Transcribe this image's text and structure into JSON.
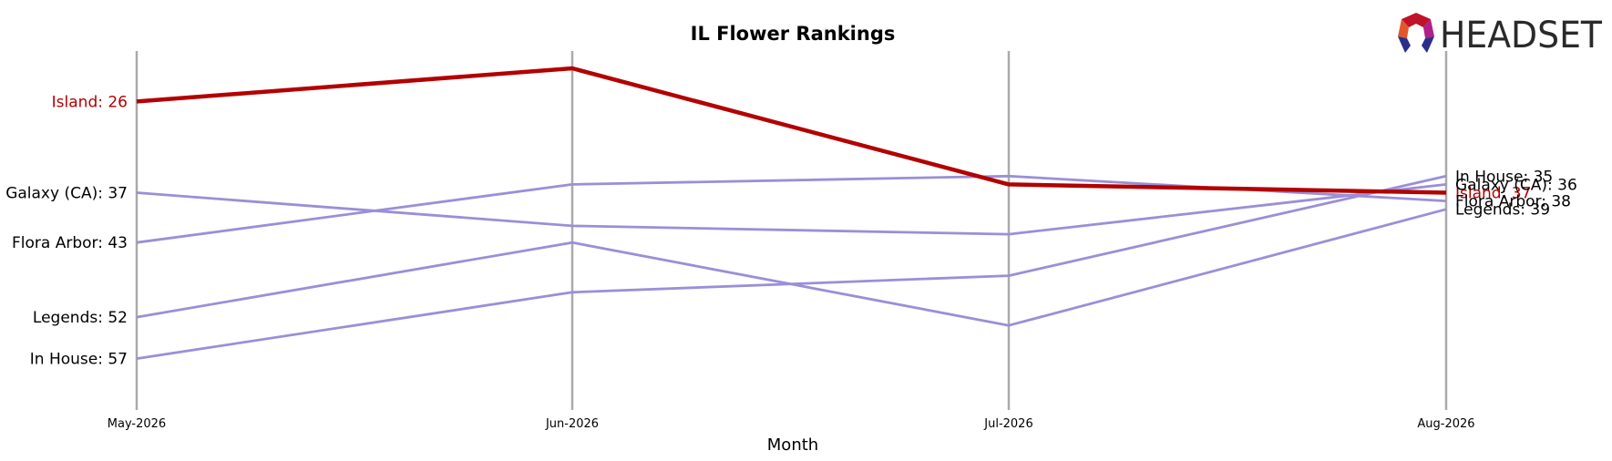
{
  "brand": {
    "name": "HEADSET",
    "logo_icon": "headset-hexagon-icon",
    "colors": [
      "#c0122a",
      "#e2582b",
      "#8b1a7a",
      "#2b2e8a",
      "#b01f8a"
    ]
  },
  "colors": {
    "highlight": "#b30000",
    "others": "#9a8fd8",
    "axis_line": "#aaaaaa",
    "text": "#000000"
  },
  "chart_data": {
    "type": "line",
    "title": "IL Flower Rankings",
    "xlabel": "Month",
    "ylabel": "",
    "categories": [
      "May-2026",
      "Jun-2026",
      "Jul-2026",
      "Aug-2026"
    ],
    "y_inverted": true,
    "ylim": [
      22,
      61
    ],
    "grid": false,
    "series": [
      {
        "name": "Island",
        "values": [
          26,
          22,
          36,
          37
        ],
        "highlight": true,
        "start_label": "Island: 26",
        "end_label": "Island: 37"
      },
      {
        "name": "Galaxy (CA)",
        "values": [
          37,
          41,
          42,
          36
        ],
        "highlight": false,
        "start_label": "Galaxy (CA): 37",
        "end_label": "Galaxy (CA): 36"
      },
      {
        "name": "Flora Arbor",
        "values": [
          43,
          36,
          35,
          38
        ],
        "highlight": false,
        "start_label": "Flora Arbor: 43",
        "end_label": "Flora Arbor: 38"
      },
      {
        "name": "Legends",
        "values": [
          52,
          43,
          53,
          39
        ],
        "highlight": false,
        "start_label": "Legends: 52",
        "end_label": "Legends: 39"
      },
      {
        "name": "In House",
        "values": [
          57,
          49,
          47,
          35
        ],
        "highlight": false,
        "start_label": "In House: 57",
        "end_label": "In House: 35"
      }
    ]
  }
}
